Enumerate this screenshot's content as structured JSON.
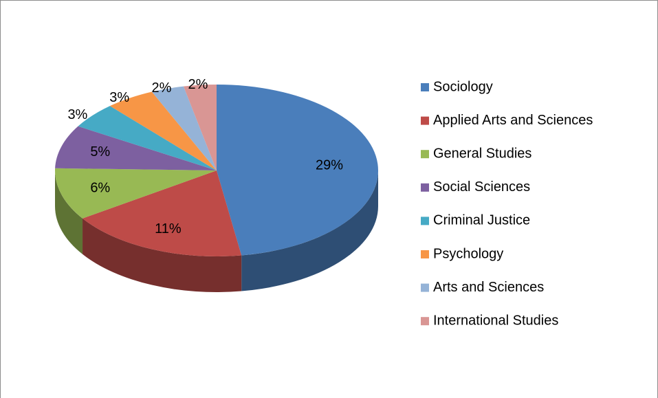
{
  "chart_data": {
    "type": "pie",
    "categories": [
      "Sociology",
      "Applied Arts and Sciences",
      "General Studies",
      "Social Sciences",
      "Criminal Justice",
      "Psychology",
      "Arts and Sciences",
      "International Studies"
    ],
    "values": [
      29,
      11,
      6,
      5,
      3,
      3,
      2,
      2
    ],
    "value_labels": [
      "29%",
      "11%",
      "6%",
      "5%",
      "3%",
      "3%",
      "2%",
      "2%"
    ],
    "colors": [
      "#4a7ebb",
      "#be4b48",
      "#98b954",
      "#7d60a0",
      "#46aac5",
      "#f79646",
      "#95b3d7",
      "#d99694"
    ],
    "legend": "right"
  }
}
